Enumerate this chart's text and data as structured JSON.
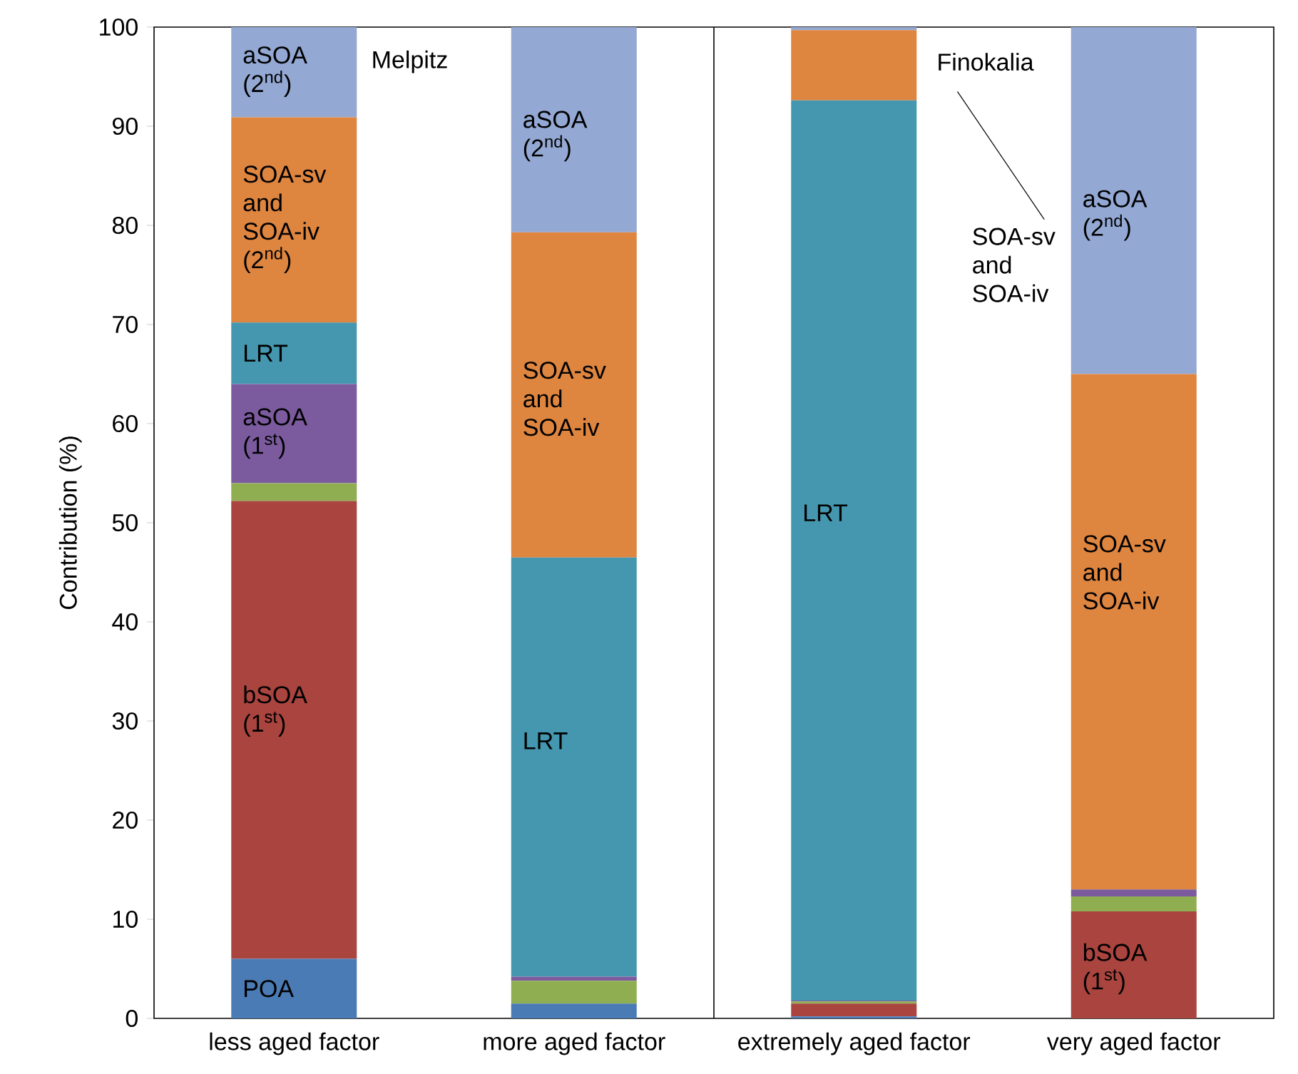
{
  "chart_data": {
    "type": "bar",
    "stacked": true,
    "ylabel": "Contribution (%)",
    "categories": [
      "less aged factor",
      "more aged factor",
      "extremely aged factor",
      "very aged factor"
    ],
    "ylim": [
      0,
      100
    ],
    "yticks": [
      0,
      10,
      20,
      30,
      40,
      50,
      60,
      70,
      80,
      90,
      100
    ],
    "series": [
      {
        "color": "#4b7bb5",
        "values": [
          6,
          1.5,
          0.2,
          0
        ]
      },
      {
        "color": "#a9443f",
        "values": [
          46.2,
          0,
          1.3,
          10.8
        ]
      },
      {
        "color": "#8fae52",
        "values": [
          1.8,
          2.3,
          0.2,
          1.5
        ]
      },
      {
        "color": "#7b5b9e",
        "values": [
          10,
          0.4,
          0.1,
          0.7
        ]
      },
      {
        "color": "#4497ae",
        "values": [
          6.2,
          42.3,
          90.8,
          0
        ]
      },
      {
        "color": "#de8540",
        "values": [
          20.7,
          32.8,
          7.1,
          52
        ]
      },
      {
        "color": "#93a8d3",
        "values": [
          9.1,
          20.7,
          0.3,
          35
        ]
      }
    ],
    "annotations": [
      "Melpitz",
      "Finokalia",
      "aSOA (2$^{nd}$)",
      "SOA-sv and SOA-iv (2$^{nd}$)",
      "LRT",
      "aSOA (1$^{st}$)",
      "bSOA (1$^{st}$)",
      "POA",
      "aSOA (2$^{nd}$)",
      "SOA-sv and SOA-iv",
      "LRT",
      "LRT",
      "SOA-sv and SOA-iv",
      "aSOA (2$^{nd}$)",
      "SOA-sv and SOA-iv",
      "bSOA (1$^{st}$)"
    ]
  }
}
